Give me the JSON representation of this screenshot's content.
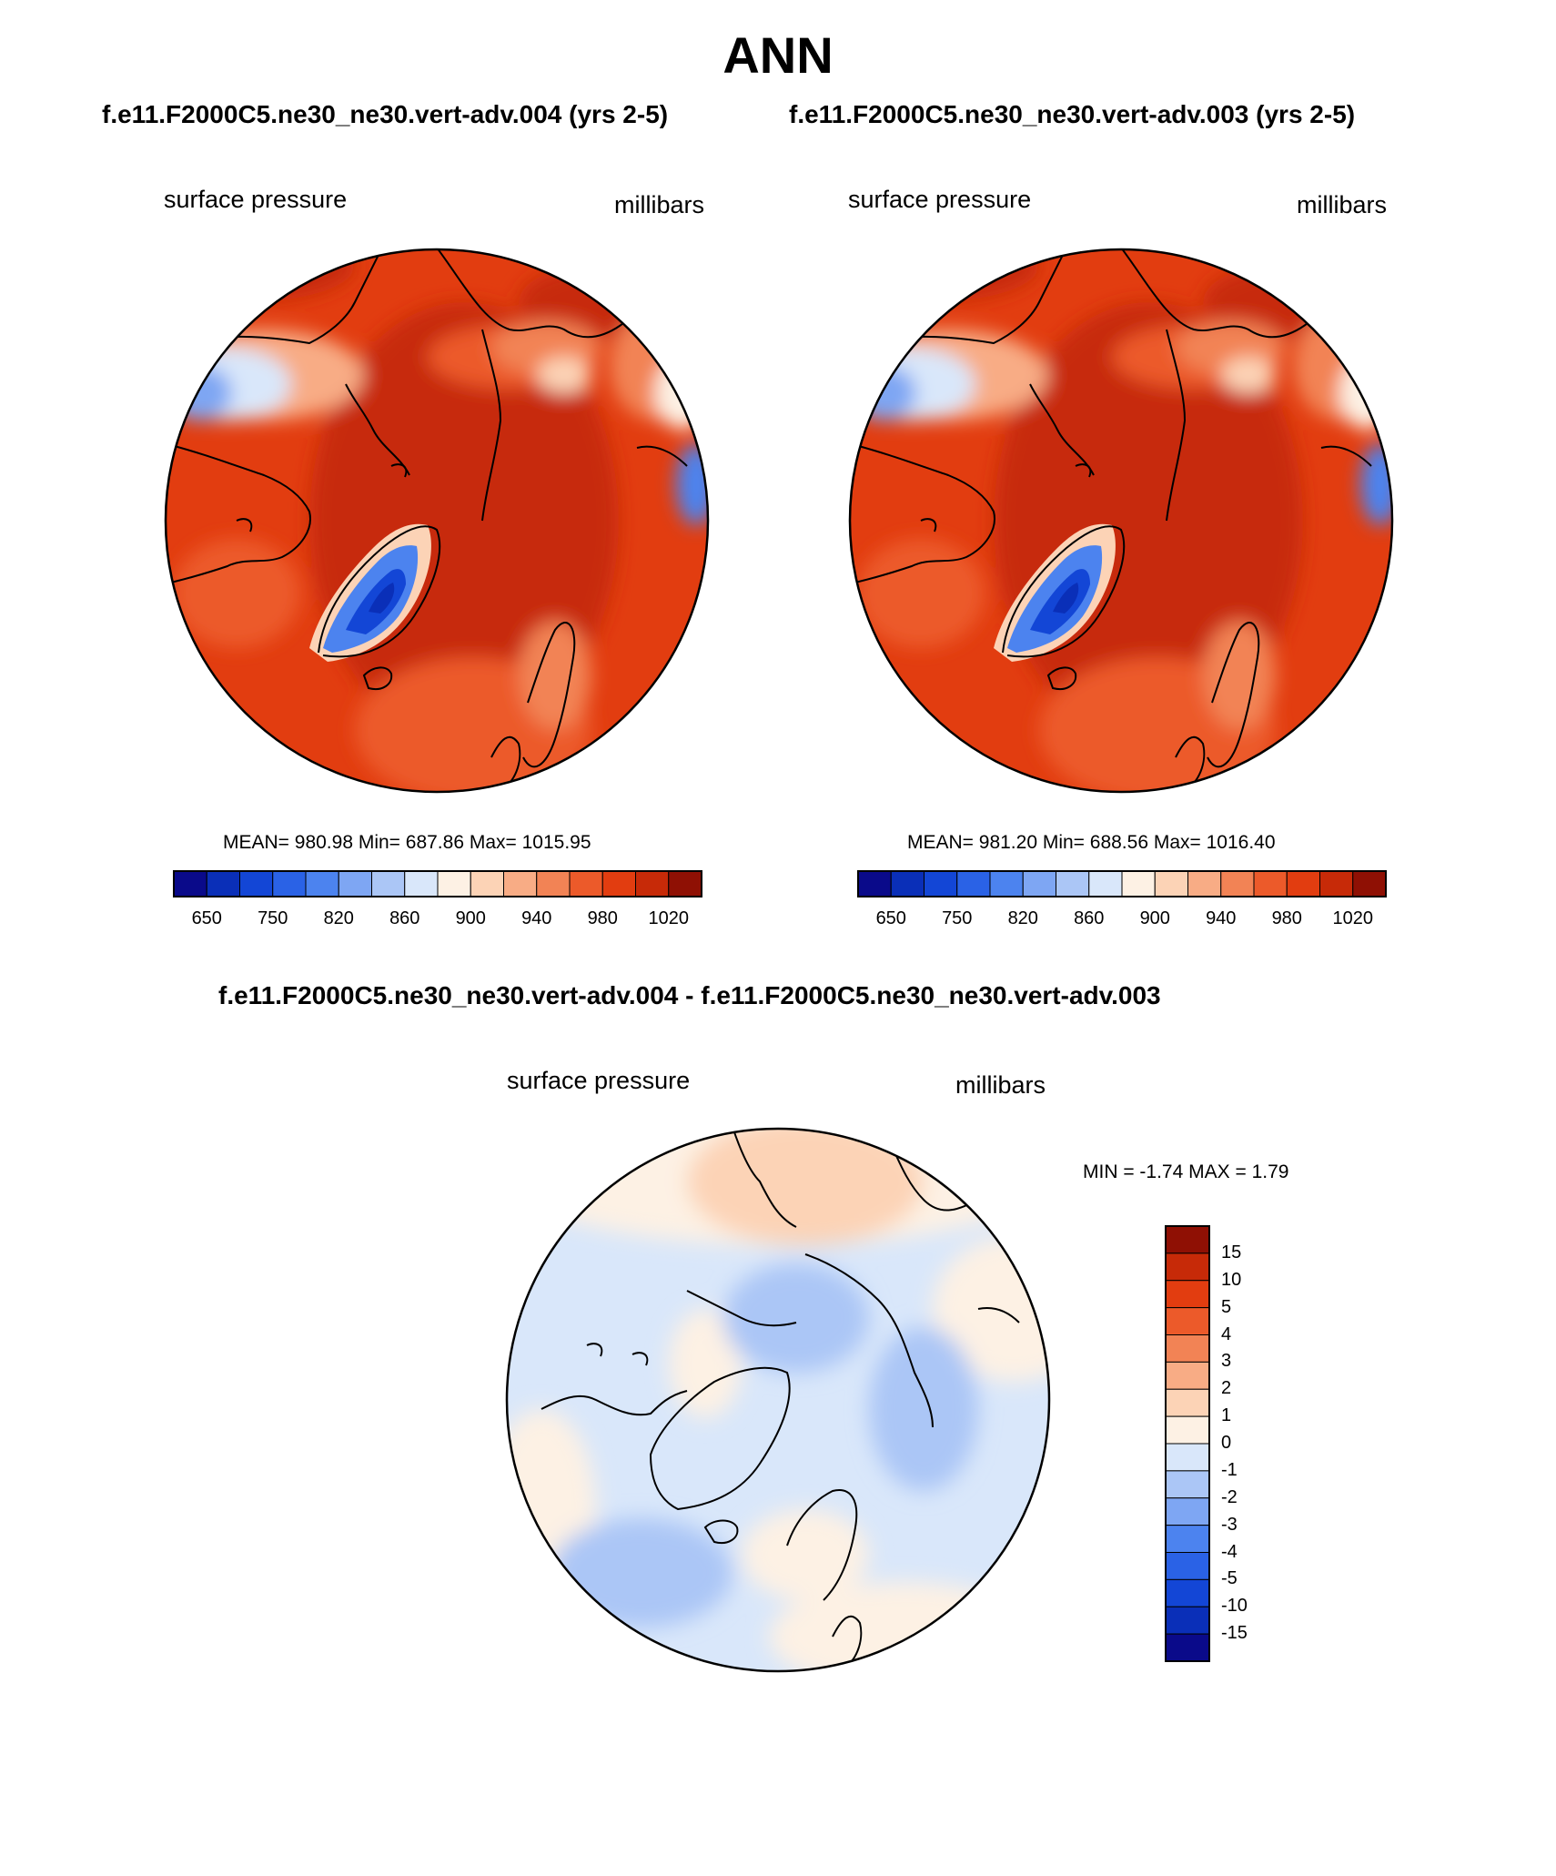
{
  "page": {
    "title": "ANN"
  },
  "chart_data": [
    {
      "type": "heatmap",
      "projection": "north-polar-stereographic",
      "title": "f.e11.F2000C5.ne30_ne30.vert-adv.004 (yrs 2-5)",
      "left_label": "surface pressure",
      "right_label": "millibars",
      "stats": {
        "text": "MEAN= 980.98  Min= 687.86  Max= 1015.95",
        "mean": 980.98,
        "min": 687.86,
        "max": 1015.95
      },
      "colorbar": {
        "orientation": "horizontal",
        "colors": [
          "#0a0a8a",
          "#0a2fb8",
          "#1346d6",
          "#2a62e6",
          "#4c83ef",
          "#7ea6f3",
          "#abc6f6",
          "#d9e7fa",
          "#fdf1e4",
          "#fcd3b6",
          "#f8ac85",
          "#f28355",
          "#ec5a2a",
          "#e23d10",
          "#c72a08",
          "#8f1004"
        ],
        "tick_labels": [
          "650",
          "750",
          "820",
          "860",
          "900",
          "940",
          "980",
          "1020"
        ]
      }
    },
    {
      "type": "heatmap",
      "projection": "north-polar-stereographic",
      "title": "f.e11.F2000C5.ne30_ne30.vert-adv.003 (yrs 2-5)",
      "left_label": "surface pressure",
      "right_label": "millibars",
      "stats": {
        "text": "MEAN= 981.20  Min= 688.56  Max= 1016.40",
        "mean": 981.2,
        "min": 688.56,
        "max": 1016.4
      },
      "colorbar": {
        "orientation": "horizontal",
        "colors": [
          "#0a0a8a",
          "#0a2fb8",
          "#1346d6",
          "#2a62e6",
          "#4c83ef",
          "#7ea6f3",
          "#abc6f6",
          "#d9e7fa",
          "#fdf1e4",
          "#fcd3b6",
          "#f8ac85",
          "#f28355",
          "#ec5a2a",
          "#e23d10",
          "#c72a08",
          "#8f1004"
        ],
        "tick_labels": [
          "650",
          "750",
          "820",
          "860",
          "900",
          "940",
          "980",
          "1020"
        ]
      }
    },
    {
      "type": "heatmap",
      "projection": "north-polar-stereographic",
      "title": "f.e11.F2000C5.ne30_ne30.vert-adv.004 - f.e11.F2000C5.ne30_ne30.vert-adv.003",
      "left_label": "surface pressure",
      "right_label": "millibars",
      "stats": {
        "text": "MIN =  -1.74 MAX =   1.79",
        "min": -1.74,
        "max": 1.79
      },
      "colorbar": {
        "orientation": "vertical",
        "colors": [
          "#8f1004",
          "#c72a08",
          "#e23d10",
          "#ec5a2a",
          "#f28355",
          "#f8ac85",
          "#fcd3b6",
          "#fdf1e4",
          "#d9e7fa",
          "#abc6f6",
          "#7ea6f3",
          "#4c83ef",
          "#2a62e6",
          "#1346d6",
          "#0a2fb8",
          "#0a0a8a"
        ],
        "tick_labels": [
          "15",
          "10",
          "5",
          "4",
          "3",
          "2",
          "1",
          "0",
          "-1",
          "-2",
          "-3",
          "-4",
          "-5",
          "-10",
          "-15"
        ]
      }
    }
  ]
}
